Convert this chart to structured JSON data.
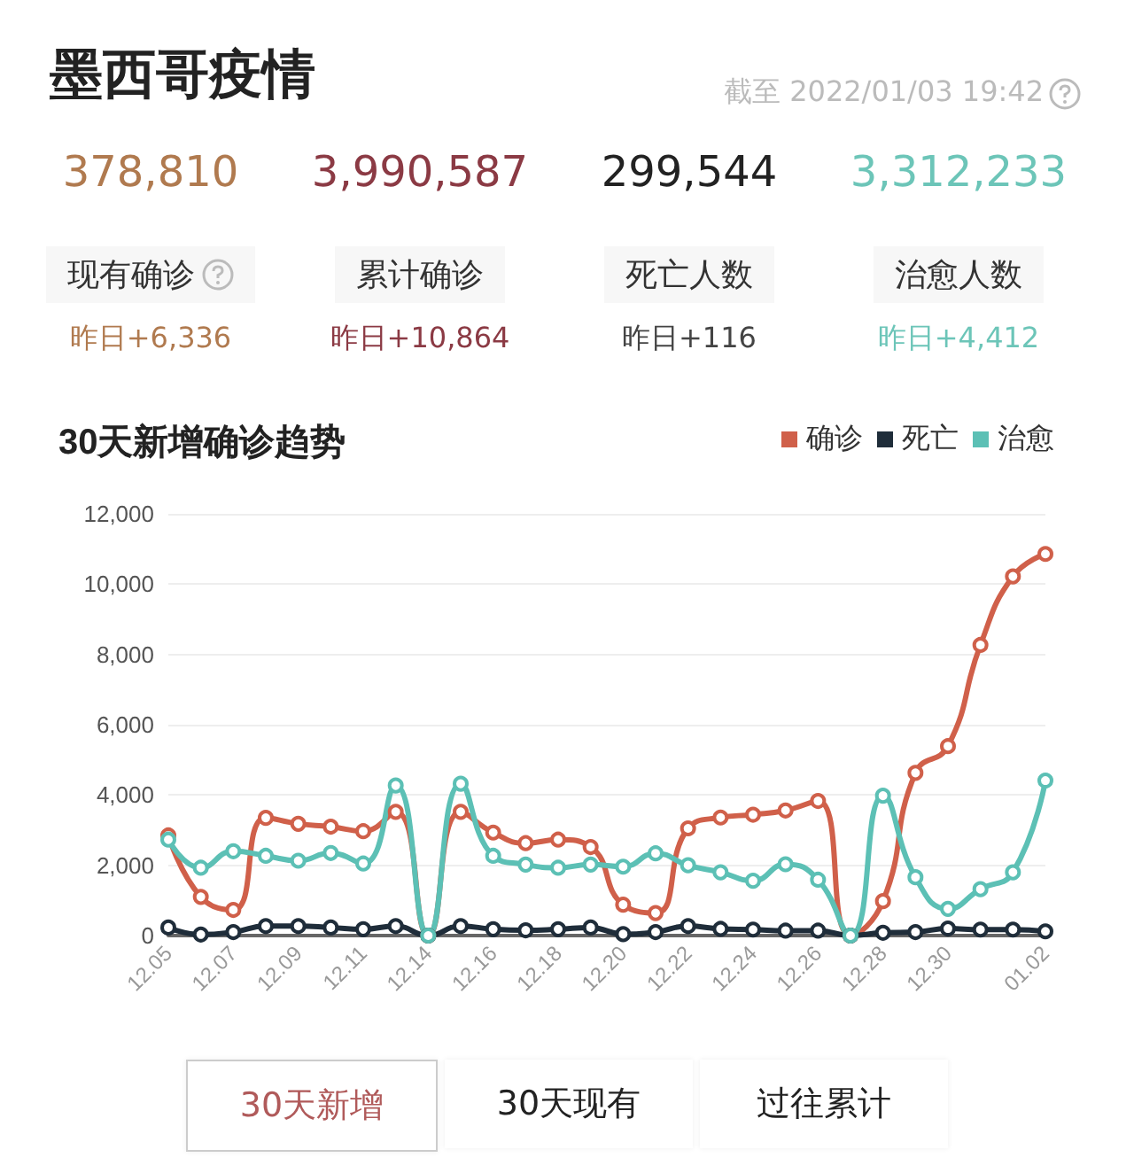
{
  "chart_data": [
    {
      "type": "other",
      "title": "墨西哥疫情",
      "annotations": [
        "截至 2022/01/03 19:42",
        "378,810",
        "现有确诊",
        "昨日+6,336",
        "3,990,587",
        "累计确诊",
        "昨日+10,864",
        "299,544",
        "死亡人数",
        "昨日+116",
        "3,312,233",
        "治愈人数",
        "昨日+4,412"
      ]
    },
    {
      "type": "line",
      "title": "30天新增确诊趋势",
      "categories": [
        "12.05",
        null,
        "12.07",
        null,
        "12.09",
        null,
        "12.11",
        null,
        "12.14",
        null,
        "12.16",
        null,
        "12.18",
        null,
        "12.20",
        null,
        "12.22",
        null,
        "12.24",
        null,
        "12.26",
        null,
        "12.28",
        null,
        "12.30",
        null,
        null,
        "01.02"
      ],
      "series": [
        {
          "name": "确诊",
          "color": "#d0604a",
          "values": [
            2850,
            1100,
            730,
            3350,
            3180,
            3100,
            2970,
            3520,
            0,
            3520,
            2930,
            2630,
            2730,
            2520,
            880,
            640,
            3050,
            3360,
            3440,
            3560,
            3830,
            0,
            980,
            4630,
            5390,
            8270,
            10220,
            10860
          ]
        },
        {
          "name": "死亡",
          "color": "#1f2d3a",
          "values": [
            230,
            30,
            100,
            270,
            270,
            230,
            180,
            270,
            0,
            270,
            180,
            150,
            180,
            230,
            40,
            100,
            270,
            190,
            170,
            140,
            140,
            0,
            80,
            100,
            200,
            170,
            170,
            120
          ]
        },
        {
          "name": "治愈",
          "color": "#5cc0b5",
          "values": [
            2730,
            1930,
            2400,
            2270,
            2130,
            2350,
            2050,
            4270,
            0,
            4320,
            2270,
            2020,
            1930,
            2020,
            1960,
            2340,
            2000,
            1800,
            1560,
            2030,
            1590,
            0,
            3980,
            1660,
            760,
            1320,
            1800,
            4410
          ]
        }
      ],
      "ylim": [
        0,
        12000
      ],
      "yticks": [
        0,
        {
          "value": 2000,
          "label": "2,000"
        },
        {
          "value": 4000,
          "label": "4,000"
        },
        {
          "value": 6000,
          "label": "6,000"
        },
        {
          "value": 8000,
          "label": "8,000"
        },
        {
          "value": 10000,
          "label": "10,000"
        },
        {
          "value": 12000,
          "label": "12,000"
        }
      ],
      "grid": "y",
      "legend": "top right",
      "marker": "circle",
      "line_style": "solid",
      "annotations": [
        "30天新增",
        "30天现有",
        "过往累计"
      ]
    }
  ]
}
